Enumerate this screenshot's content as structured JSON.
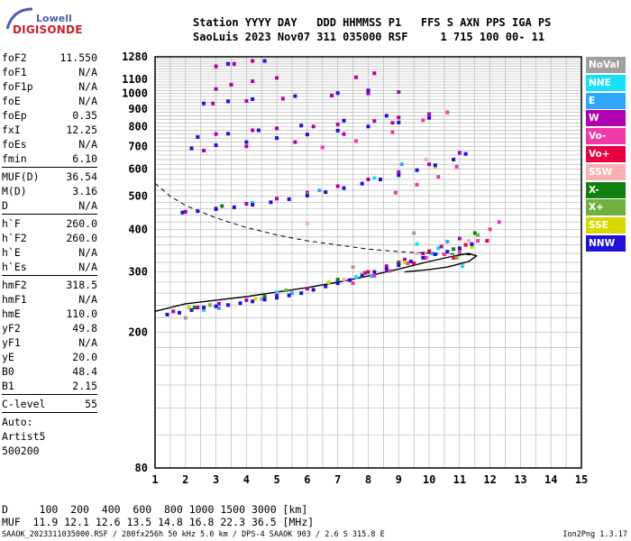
{
  "logo": {
    "line1": "Lowell",
    "line2": "DIGISONDE"
  },
  "header": {
    "line1": "Station YYYY DAY   DDD HHMMSS P1   FFS S AXN PPS IGA PS",
    "line2": "SaoLuis 2023 Nov07 311 035000 RSF     1 715 100 00- 11"
  },
  "params": {
    "group1": [
      {
        "k": "foF2",
        "v": "11.550"
      },
      {
        "k": "foF1",
        "v": "N/A"
      },
      {
        "k": "foF1p",
        "v": "N/A"
      },
      {
        "k": "foE",
        "v": "N/A"
      },
      {
        "k": "foEp",
        "v": "0.35"
      },
      {
        "k": "fxI",
        "v": "12.25"
      },
      {
        "k": "foEs",
        "v": "N/A"
      },
      {
        "k": "fmin",
        "v": "6.10"
      }
    ],
    "group2": [
      {
        "k": "MUF(D)",
        "v": "36.54"
      },
      {
        "k": "M(D)",
        "v": "3.16"
      },
      {
        "k": "D",
        "v": "N/A"
      }
    ],
    "group3": [
      {
        "k": "h`F",
        "v": "260.0"
      },
      {
        "k": "h`F2",
        "v": "260.0"
      },
      {
        "k": "h`E",
        "v": "N/A"
      },
      {
        "k": "h`Es",
        "v": "N/A"
      }
    ],
    "group4": [
      {
        "k": "hmF2",
        "v": "318.5"
      },
      {
        "k": "hmF1",
        "v": "N/A"
      },
      {
        "k": "hmE",
        "v": "110.0"
      },
      {
        "k": "yF2",
        "v": "49.8"
      },
      {
        "k": "yF1",
        "v": "N/A"
      },
      {
        "k": "yE",
        "v": "20.0"
      },
      {
        "k": "B0",
        "v": "48.4"
      },
      {
        "k": "B1",
        "v": "2.15"
      }
    ],
    "clevel": {
      "k": "C-level",
      "v": "55"
    },
    "auto": [
      "Auto:",
      "Artist5",
      "500200"
    ]
  },
  "legend": [
    {
      "label": "NoVal",
      "color": "#a0a0a0"
    },
    {
      "label": "NNE",
      "color": "#18e0f8"
    },
    {
      "label": "E",
      "color": "#30a8f8"
    },
    {
      "label": "W",
      "color": "#b000b0"
    },
    {
      "label": "Vo-",
      "color": "#f038a8"
    },
    {
      "label": "Vo+",
      "color": "#e80040"
    },
    {
      "label": "SSW",
      "color": "#f8b0b0"
    },
    {
      "label": "X-",
      "color": "#108010"
    },
    {
      "label": "X+",
      "color": "#70b040"
    },
    {
      "label": "SSE",
      "color": "#d8d800"
    },
    {
      "label": "NNW",
      "color": "#2010d8"
    }
  ],
  "footer": {
    "d_row": "D     100  200  400  600  800 1000 1500 3000 [km]",
    "muf_row": "MUF  11.9 12.1 12.6 13.5 14.8 16.8 22.3 36.5 [MHz]",
    "credits": "SAAOK_2023311035000.RSF / 280fx256h 50 kHz 5.0 km / DPS-4 SAAOK 903 / 2.6 S 315.8 E",
    "version": "Ion2Png 1.3.17"
  },
  "chart_data": {
    "type": "scatter",
    "title": "",
    "xlabel": "",
    "ylabel": "",
    "xlim": [
      1,
      15
    ],
    "ylim": [
      80,
      1280
    ],
    "y_scale": "log",
    "x_ticks": [
      1,
      2,
      3,
      4,
      5,
      6,
      7,
      8,
      9,
      10,
      11,
      12,
      13,
      14,
      15
    ],
    "y_ticks": [
      80,
      200,
      300,
      400,
      500,
      600,
      700,
      800,
      900,
      1000,
      1100,
      1280
    ],
    "grid": true,
    "series": [
      {
        "name": "NoVal",
        "x": [
          2.0,
          4.5,
          7.5,
          9.5
        ],
        "y": [
          220,
          250,
          310,
          390
        ]
      },
      {
        "name": "NNE",
        "x": [
          2.6,
          5.0,
          7.6,
          9.6,
          10.3,
          11.1,
          4.2,
          8.2
        ],
        "y": [
          232,
          262,
          290,
          362,
          352,
          312,
          478,
          565
        ]
      },
      {
        "name": "E",
        "x": [
          3.1,
          5.5,
          8.1,
          10.1,
          10.6,
          6.4,
          9.1
        ],
        "y": [
          235,
          260,
          292,
          340,
          368,
          520,
          620
        ]
      },
      {
        "name": "W",
        "x": [
          1.6,
          2.4,
          3.1,
          4.0,
          5.0,
          6.0,
          7.0,
          7.9,
          8.6,
          9.2,
          9.8,
          10.4,
          11.0,
          2.0,
          3.0,
          4.0,
          5.0,
          6.0,
          7.0,
          8.0,
          9.0,
          10.0,
          11.0,
          2.6,
          4.0,
          5.6,
          7.2,
          8.8,
          10.0,
          3.0,
          4.2,
          5.0,
          6.2,
          7.0,
          8.2,
          9.0,
          2.9,
          4.0,
          5.2,
          6.8,
          8.0,
          9.0,
          3.0,
          3.5,
          4.2,
          5.0,
          3.0,
          3.6,
          4.2,
          7.6,
          8.2
        ],
        "y": [
          230,
          236,
          242,
          248,
          256,
          268,
          282,
          298,
          312,
          326,
          340,
          356,
          376,
          450,
          460,
          475,
          492,
          512,
          535,
          560,
          588,
          620,
          670,
          680,
          700,
          720,
          760,
          820,
          870,
          760,
          780,
          790,
          800,
          812,
          830,
          850,
          935,
          950,
          965,
          985,
          1000,
          1010,
          1030,
          1060,
          1085,
          1110,
          1200,
          1220,
          1245,
          1115,
          1145
        ]
      },
      {
        "name": "Vo-",
        "x": [
          7.5,
          8.2,
          8.7,
          9.3,
          9.9,
          10.5,
          11.0,
          11.6,
          12.0,
          12.3,
          8.9,
          9.6,
          10.3,
          10.9,
          6.5,
          7.6,
          8.8,
          9.8,
          10.6
        ],
        "y": [
          278,
          292,
          302,
          318,
          330,
          338,
          345,
          370,
          400,
          420,
          512,
          540,
          570,
          610,
          695,
          725,
          770,
          835,
          880
        ]
      },
      {
        "name": "Vo+",
        "x": [
          8.0,
          9.0,
          10.0,
          11.2,
          11.9,
          10.8,
          9.5
        ],
        "y": [
          300,
          320,
          345,
          360,
          370,
          330,
          318
        ]
      },
      {
        "name": "SSW",
        "x": [
          7.2,
          9.6,
          11.3,
          6.0,
          9.9
        ],
        "y": [
          285,
          340,
          370,
          415,
          640
        ]
      },
      {
        "name": "X-",
        "x": [
          2.3,
          4.6,
          7.0,
          9.0,
          10.8,
          11.5,
          3.2,
          8.4
        ],
        "y": [
          236,
          254,
          285,
          318,
          350,
          390,
          468,
          560
        ]
      },
      {
        "name": "X+",
        "x": [
          2.8,
          5.3,
          7.8,
          9.4,
          10.9,
          11.6,
          6.0
        ],
        "y": [
          240,
          265,
          295,
          322,
          330,
          385,
          507
        ]
      },
      {
        "name": "SSE",
        "x": [
          2.1,
          4.3,
          6.7,
          9.2,
          11.4,
          10.2
        ],
        "y": [
          236,
          250,
          280,
          320,
          355,
          610
        ]
      },
      {
        "name": "NNW",
        "x": [
          1.4,
          1.8,
          2.2,
          2.6,
          3.0,
          3.4,
          3.8,
          4.2,
          4.6,
          5.0,
          5.4,
          5.8,
          6.2,
          6.6,
          7.0,
          7.4,
          7.8,
          8.2,
          8.6,
          9.0,
          9.4,
          9.8,
          10.2,
          10.6,
          11.0,
          11.4,
          1.9,
          2.4,
          3.0,
          3.6,
          4.2,
          4.8,
          5.4,
          6.0,
          6.6,
          7.2,
          7.8,
          8.4,
          9.0,
          9.6,
          10.2,
          10.8,
          11.2,
          2.2,
          3.0,
          4.0,
          5.0,
          6.0,
          7.0,
          8.0,
          9.0,
          10.0,
          2.4,
          3.4,
          4.4,
          5.8,
          7.2,
          8.6,
          2.6,
          3.4,
          4.2,
          5.6,
          7.0,
          8.0,
          3.4,
          4.6
        ],
        "y": [
          225,
          228,
          232,
          236,
          238,
          240,
          243,
          246,
          249,
          252,
          256,
          260,
          266,
          272,
          278,
          284,
          292,
          300,
          306,
          314,
          322,
          330,
          338,
          344,
          352,
          362,
          448,
          452,
          458,
          464,
          472,
          480,
          490,
          502,
          514,
          528,
          544,
          560,
          576,
          596,
          616,
          640,
          665,
          690,
          705,
          720,
          740,
          758,
          778,
          800,
          822,
          848,
          745,
          762,
          780,
          805,
          832,
          860,
          935,
          948,
          962,
          982,
          1002,
          1020,
          1220,
          1245
        ]
      }
    ],
    "curves": {
      "profile_solid": {
        "x": [
          1.0,
          2.0,
          3.0,
          4.0,
          5.0,
          6.0,
          7.0,
          8.0,
          9.0,
          10.0,
          10.8,
          11.3,
          11.55,
          11.3,
          10.6,
          10.0,
          9.2
        ],
        "y": [
          230,
          242,
          248,
          254,
          262,
          270,
          280,
          292,
          306,
          322,
          334,
          340,
          334,
          322,
          310,
          305,
          300
        ]
      },
      "profile_dashed": {
        "x": [
          1.0,
          1.5,
          2.0,
          2.5,
          3.0,
          3.5,
          4.0,
          5.0,
          6.0,
          7.0,
          8.0,
          9.0,
          10.0,
          11.0,
          11.55
        ],
        "y": [
          545,
          500,
          470,
          450,
          432,
          418,
          405,
          385,
          370,
          360,
          350,
          344,
          340,
          338,
          336
        ]
      }
    }
  }
}
